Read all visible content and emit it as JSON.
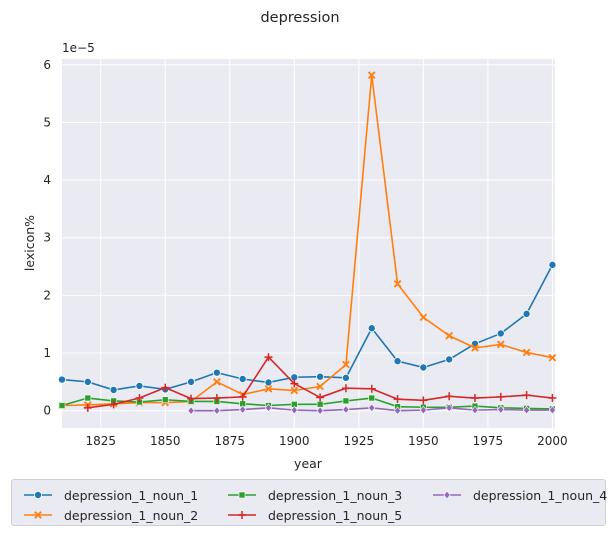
{
  "chart_data": {
    "type": "line",
    "title": "depression",
    "xlabel": "year",
    "ylabel": "lexicon%",
    "y_scale_label": "1e−5",
    "xlim": [
      1810,
      2001
    ],
    "ylim": [
      -0.3,
      6.1
    ],
    "x_ticks": [
      1825,
      1850,
      1875,
      1900,
      1925,
      1950,
      1975,
      2000
    ],
    "y_ticks": [
      0,
      1,
      2,
      3,
      4,
      5,
      6
    ],
    "grid": true,
    "legend_position": "bottom",
    "series": [
      {
        "name": "depression_1_noun_1",
        "color": "#1f77b4",
        "marker": "circle",
        "x": [
          1810,
          1820,
          1830,
          1840,
          1850,
          1860,
          1870,
          1880,
          1890,
          1900,
          1910,
          1920,
          1930,
          1940,
          1950,
          1960,
          1970,
          1980,
          1990,
          2000
        ],
        "y": [
          0.54,
          0.5,
          0.36,
          0.43,
          0.37,
          0.5,
          0.66,
          0.55,
          0.49,
          0.58,
          0.59,
          0.57,
          1.43,
          0.86,
          0.75,
          0.89,
          1.16,
          1.34,
          1.68,
          2.53
        ]
      },
      {
        "name": "depression_1_noun_2",
        "color": "#ff7f0e",
        "marker": "x",
        "x": [
          1810,
          1820,
          1830,
          1840,
          1850,
          1860,
          1870,
          1880,
          1890,
          1900,
          1910,
          1920,
          1930,
          1940,
          1950,
          1960,
          1970,
          1980,
          1990,
          2000
        ],
        "y": [
          0.09,
          0.1,
          0.12,
          0.14,
          0.14,
          0.16,
          0.5,
          0.28,
          0.38,
          0.35,
          0.42,
          0.8,
          5.82,
          2.2,
          1.62,
          1.3,
          1.09,
          1.15,
          1.01,
          0.92
        ]
      },
      {
        "name": "depression_1_noun_3",
        "color": "#2ca02c",
        "marker": "square",
        "x": [
          1810,
          1820,
          1830,
          1840,
          1850,
          1860,
          1870,
          1880,
          1890,
          1900,
          1910,
          1920,
          1930,
          1940,
          1950,
          1960,
          1970,
          1980,
          1990,
          2000
        ],
        "y": [
          0.09,
          0.22,
          0.17,
          0.15,
          0.19,
          0.16,
          0.16,
          0.12,
          0.09,
          0.11,
          0.11,
          0.17,
          0.22,
          0.07,
          0.06,
          0.06,
          0.08,
          0.05,
          0.04,
          0.03
        ]
      },
      {
        "name": "depression_1_noun_5",
        "color": "#d62728",
        "marker": "plus",
        "x": [
          1820,
          1830,
          1840,
          1850,
          1860,
          1870,
          1880,
          1890,
          1900,
          1910,
          1920,
          1930,
          1940,
          1950,
          1960,
          1970,
          1980,
          1990,
          2000
        ],
        "y": [
          0.05,
          0.11,
          0.22,
          0.4,
          0.21,
          0.22,
          0.24,
          0.93,
          0.47,
          0.23,
          0.39,
          0.38,
          0.2,
          0.18,
          0.25,
          0.22,
          0.24,
          0.27,
          0.22
        ]
      },
      {
        "name": "depression_1_noun_4",
        "color": "#9467bd",
        "marker": "diamond",
        "x": [
          1860,
          1870,
          1880,
          1890,
          1900,
          1910,
          1920,
          1930,
          1940,
          1950,
          1960,
          1970,
          1980,
          1990,
          2000
        ],
        "y": [
          0.0,
          0.0,
          0.02,
          0.05,
          0.01,
          0.0,
          0.02,
          0.05,
          0.0,
          0.01,
          0.05,
          0.01,
          0.02,
          0.01,
          0.01
        ]
      }
    ],
    "legend_order": [
      "depression_1_noun_1",
      "depression_1_noun_2",
      "depression_1_noun_3",
      "depression_1_noun_5",
      "depression_1_noun_4"
    ]
  }
}
